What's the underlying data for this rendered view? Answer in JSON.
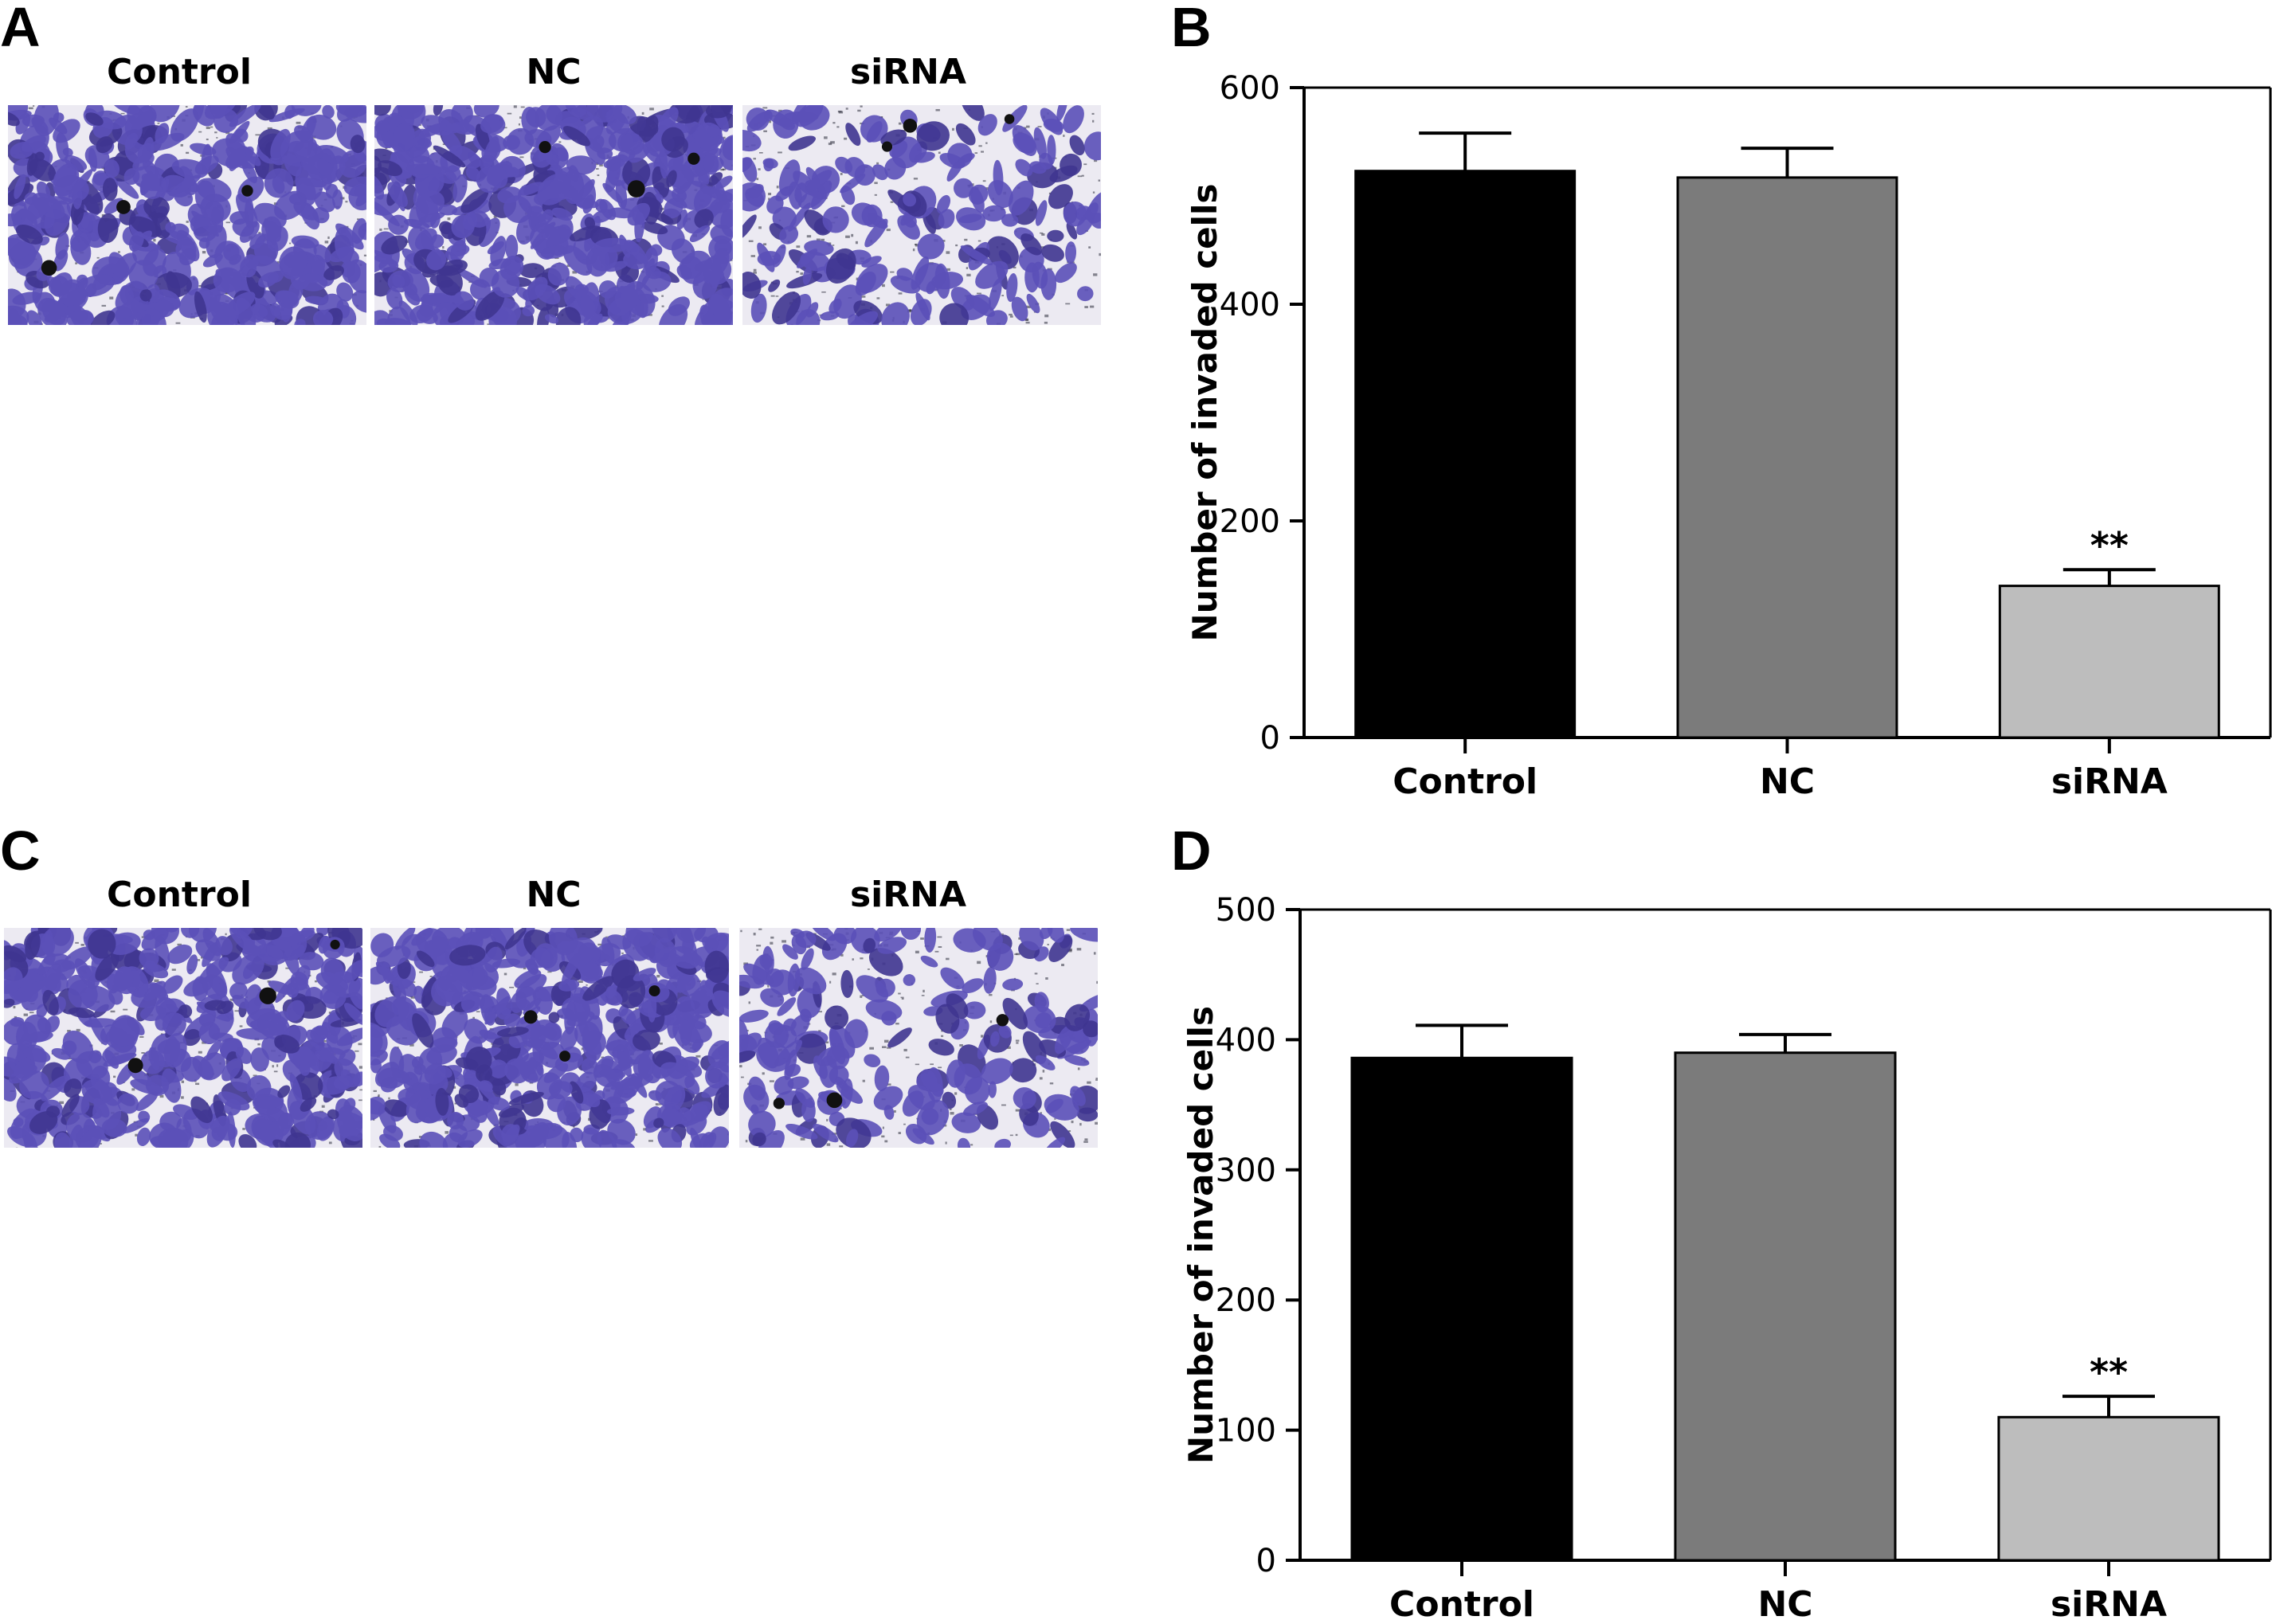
{
  "panels": {
    "A": {
      "letter": "A",
      "image_labels": [
        "Control",
        "NC",
        "siRNA"
      ]
    },
    "C": {
      "letter": "C",
      "image_labels": [
        "Control",
        "NC",
        "siRNA"
      ]
    },
    "B": {
      "letter": "B"
    },
    "D": {
      "letter": "D"
    }
  },
  "colors": {
    "stain": "#5b50b8",
    "stain_dark": "#3f3590",
    "background_field": "#eceaf2"
  },
  "chart_data": [
    {
      "panel": "B",
      "type": "bar",
      "categories": [
        "Control",
        "NC",
        "siRNA"
      ],
      "values": [
        523,
        517,
        140
      ],
      "errors": [
        35,
        27,
        15
      ],
      "significance": [
        "",
        "",
        "**"
      ],
      "bar_colors": [
        "#000000",
        "#7b7b7b",
        "#bdbdbd"
      ],
      "ylabel": "Number of invaded cells",
      "ylim": [
        0,
        600
      ],
      "yticks": [
        0,
        200,
        400,
        600
      ],
      "grid": false
    },
    {
      "panel": "D",
      "type": "bar",
      "categories": [
        "Control",
        "NC",
        "siRNA"
      ],
      "values": [
        386,
        390,
        110
      ],
      "errors": [
        25,
        14,
        16
      ],
      "significance": [
        "",
        "",
        "**"
      ],
      "bar_colors": [
        "#000000",
        "#7b7b7b",
        "#bdbdbd"
      ],
      "ylabel": "Number of invaded cells",
      "ylim": [
        0,
        500
      ],
      "yticks": [
        0,
        100,
        200,
        300,
        400,
        500
      ],
      "grid": false
    }
  ]
}
